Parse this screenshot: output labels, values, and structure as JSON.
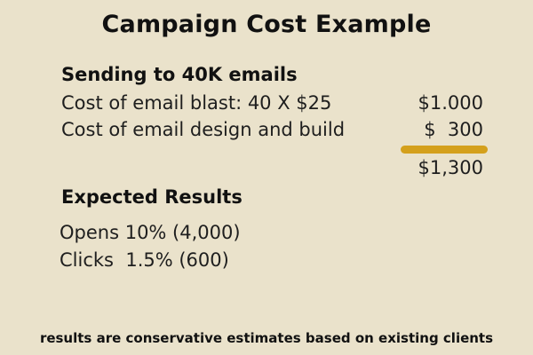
{
  "title": "Campaign Cost Example",
  "sending": {
    "heading": "Sending to 40K emails",
    "rows": [
      {
        "label": "Cost of email blast:  40 X $25",
        "amount": "$1.000"
      },
      {
        "label": "Cost of email design and build",
        "amount": "$  300"
      }
    ],
    "total": "$1,300"
  },
  "results": {
    "heading": "Expected Results",
    "items": [
      "Opens 10% (4,000)",
      "Clicks  1.5% (600)"
    ]
  },
  "footer": "results are conservative estimates based on existing clients",
  "colors": {
    "background": "#eae2cb",
    "underline": "#d4a01c",
    "text": "#111111"
  }
}
